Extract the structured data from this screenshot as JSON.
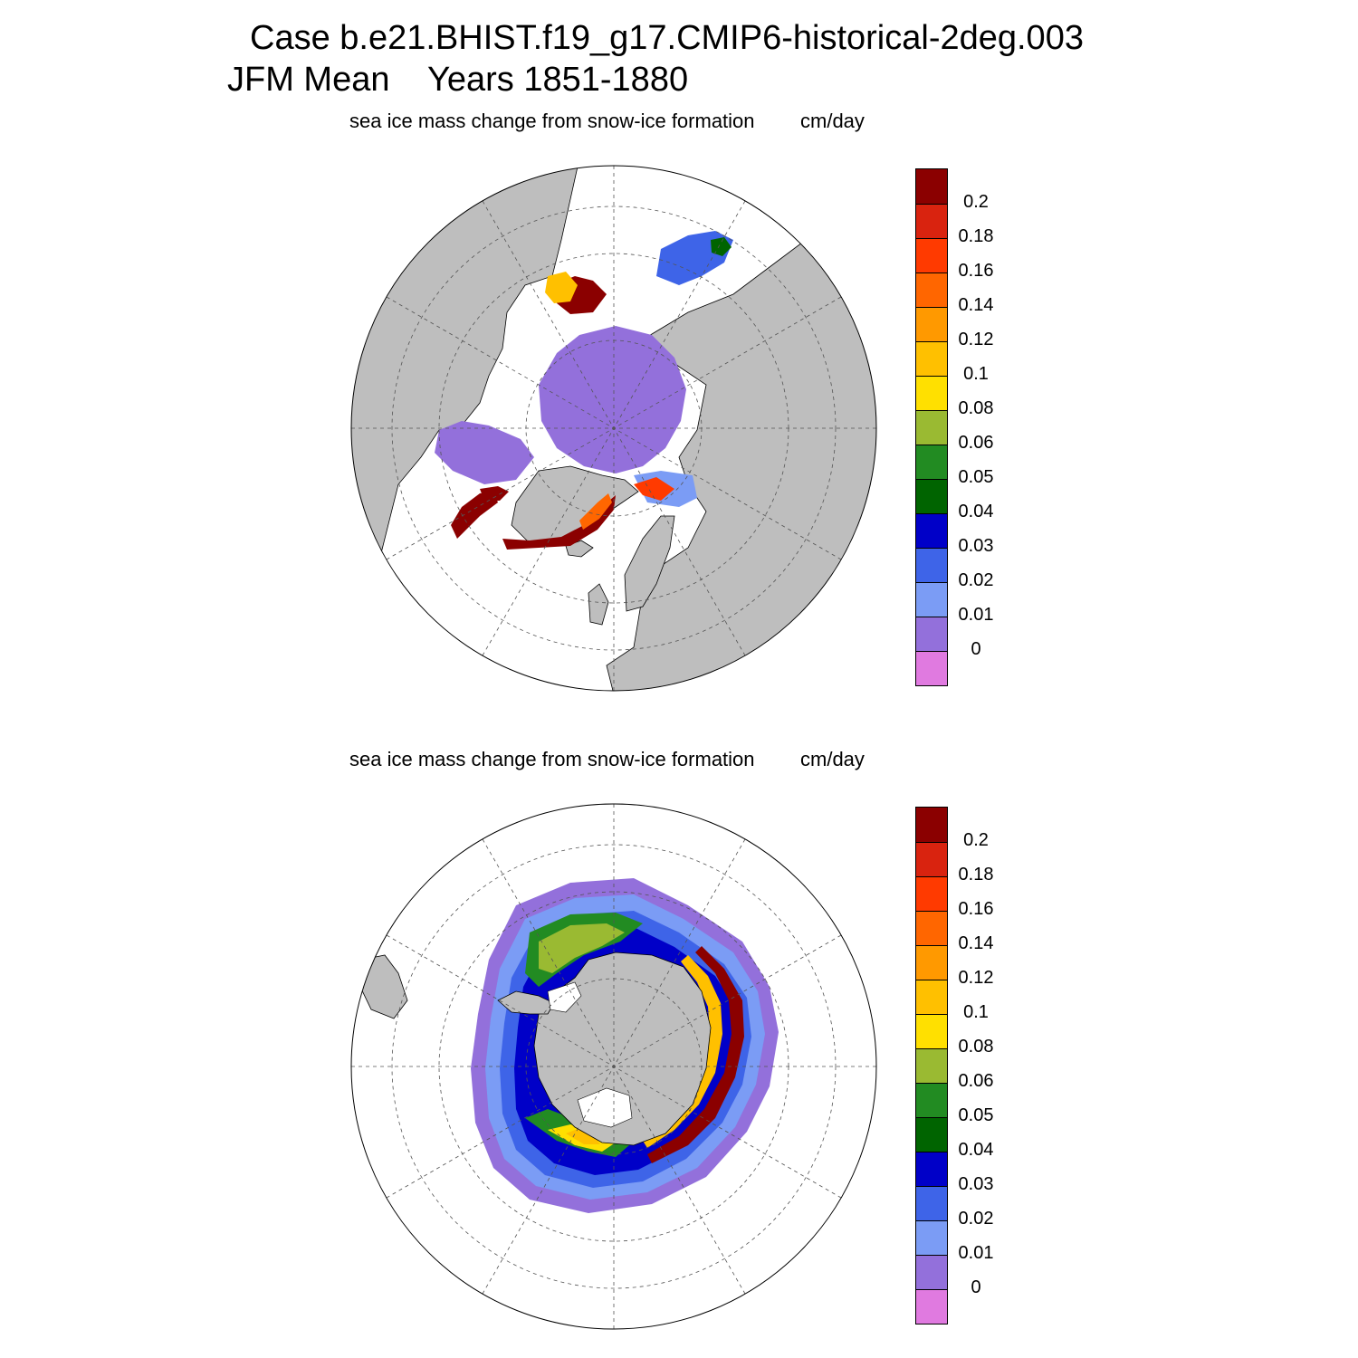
{
  "header": {
    "line1": "Case b.e21.BHIST.f19_g17.CMIP6-historical-2deg.003",
    "line2": "JFM Mean    Years 1851-1880"
  },
  "panels": [
    {
      "title": "sea ice mass change from snow-ice formation",
      "units": "cm/day",
      "hemisphere": "north"
    },
    {
      "title": "sea ice mass change from snow-ice formation",
      "units": "cm/day",
      "hemisphere": "south"
    }
  ],
  "colorbar": {
    "labels": [
      "0.2",
      "0.18",
      "0.16",
      "0.14",
      "0.12",
      "0.1",
      "0.08",
      "0.06",
      "0.05",
      "0.04",
      "0.03",
      "0.02",
      "0.01",
      "0"
    ],
    "colors": [
      "#8b0000",
      "#d9230f",
      "#ff3a00",
      "#ff6600",
      "#ff9900",
      "#ffc000",
      "#ffe000",
      "#9aba32",
      "#228b22",
      "#006400",
      "#0000c8",
      "#3e64e8",
      "#7b9cf5",
      "#9370db",
      "#e07ae0"
    ]
  },
  "map_colors": {
    "land": "#bebebe",
    "ocean": "#ffffff"
  }
}
